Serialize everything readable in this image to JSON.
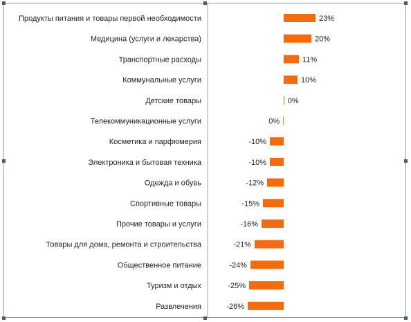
{
  "chart_data": {
    "type": "bar",
    "orientation": "horizontal",
    "title": "",
    "xlabel": "",
    "ylabel": "",
    "xlim": [
      -26,
      23
    ],
    "grid": false,
    "legend": "none",
    "colors": {
      "bar": "#F26B0F",
      "axis": "#A6A6A6",
      "text": "#1F1F1F"
    },
    "categories": [
      "Продукты питания и товары первой необходимости",
      "Медицина (услуги и лекарства)",
      "Транспортные расходы",
      "Коммунальные услуги",
      "Детские товары",
      "Телекоммуникационные услуги",
      "Косметика и парфюмерия",
      "Электроника и бытовая техника",
      "Одежда и обувь",
      "Спортивные товары",
      "Прочие товары и услуги",
      "Товары для дома, ремонта и строительства",
      "Общественное питание",
      "Туризм и отдых",
      "Развлечения"
    ],
    "values": [
      23,
      20,
      11,
      10,
      0.4,
      -0.4,
      -10,
      -10,
      -12,
      -15,
      -16,
      -21,
      -24,
      -25,
      -26
    ],
    "value_labels": [
      "23%",
      "20%",
      "11%",
      "10%",
      "0%",
      "0%",
      "-10%",
      "-10%",
      "-12%",
      "-15%",
      "-16%",
      "-21%",
      "-24%",
      "-25%",
      "-26%"
    ]
  }
}
